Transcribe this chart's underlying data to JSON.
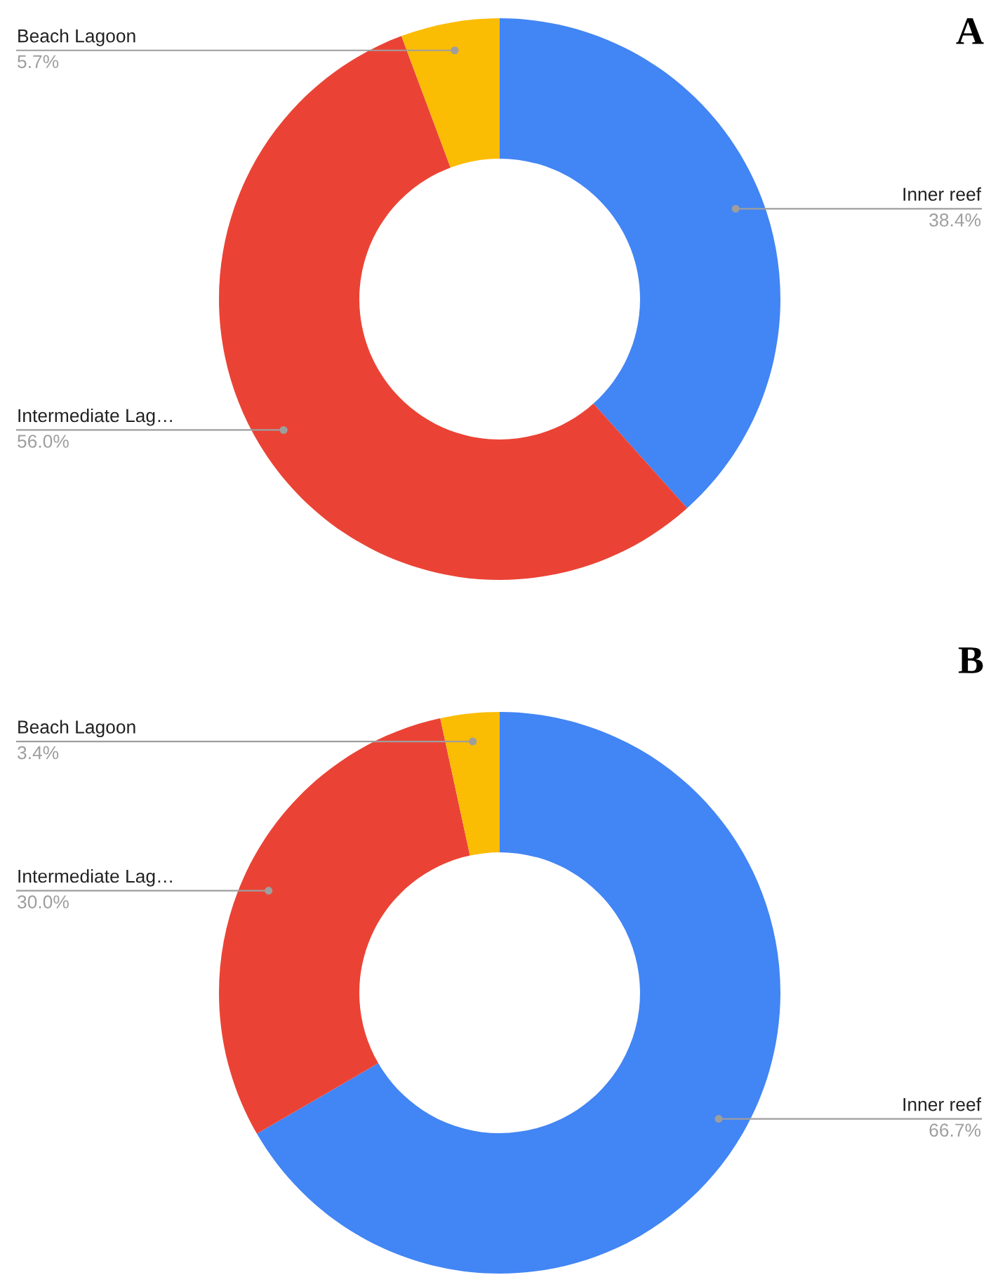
{
  "chart_data": [
    {
      "type": "donut",
      "title": "A",
      "categories": [
        "Inner reef",
        "Intermediate Lag…",
        "Beach Lagoon"
      ],
      "values": [
        38.4,
        56.0,
        5.7
      ],
      "value_labels": [
        "38.4%",
        "56.0%",
        "5.7%"
      ],
      "colors": [
        "#4285f4",
        "#ea4335",
        "#fbbc04"
      ]
    },
    {
      "type": "donut",
      "title": "B",
      "categories": [
        "Inner reef",
        "Intermediate Lag…",
        "Beach Lagoon"
      ],
      "values": [
        66.7,
        30.0,
        3.4
      ],
      "value_labels": [
        "66.7%",
        "30.0%",
        "3.4%"
      ],
      "colors": [
        "#4285f4",
        "#ea4335",
        "#fbbc04"
      ]
    }
  ]
}
